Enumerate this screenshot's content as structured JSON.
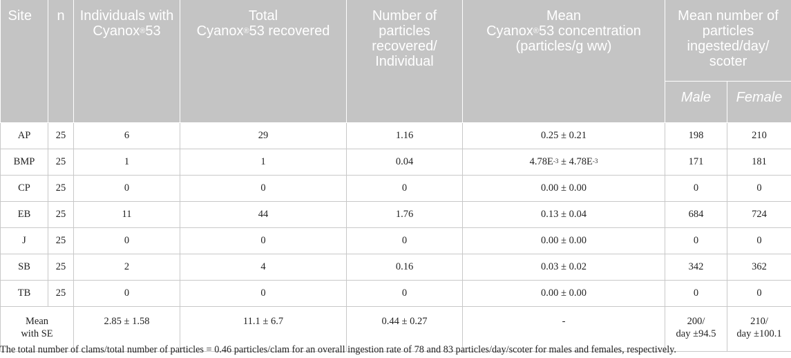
{
  "header": {
    "site": "Site",
    "n": "n",
    "individuals": "Individuals with Cyanox",
    "individuals_sup": "®",
    "individuals_tail": "53",
    "total_line1": "Total",
    "total_line2": "Cyanox",
    "total_sup": "®",
    "total_tail": "53 recovered",
    "particles": "Number of particles recovered/ Individual",
    "mean_line1": "Mean",
    "mean_line2": "Cyanox",
    "mean_sup": "®",
    "mean_tail": "53 concentration",
    "mean_line3": "(particles/g ww)",
    "ingested": "Mean number of particles ingested/day/ scoter",
    "male": "Male",
    "female": "Female"
  },
  "rows": [
    {
      "site": "AP",
      "n": "25",
      "individuals": "6",
      "total": "29",
      "per_individual": "1.16",
      "concentration": "0.25 ± 0.21",
      "male": "198",
      "female": "210"
    },
    {
      "site": "BMP",
      "n": "25",
      "individuals": "1",
      "total": "1",
      "per_individual": "0.04",
      "conc_base1": "4.78E",
      "conc_exp1": "-3",
      "conc_mid": " ± 4.78E",
      "conc_exp2": "-3",
      "male": "171",
      "female": "181"
    },
    {
      "site": "CP",
      "n": "25",
      "individuals": "0",
      "total": "0",
      "per_individual": "0",
      "concentration": "0.00 ± 0.00",
      "male": "0",
      "female": "0"
    },
    {
      "site": "EB",
      "n": "25",
      "individuals": "11",
      "total": "44",
      "per_individual": "1.76",
      "concentration": "0.13 ± 0.04",
      "male": "684",
      "female": "724"
    },
    {
      "site": "J",
      "n": "25",
      "individuals": "0",
      "total": "0",
      "per_individual": "0",
      "concentration": "0.00 ± 0.00",
      "male": "0",
      "female": "0"
    },
    {
      "site": "SB",
      "n": "25",
      "individuals": "2",
      "total": "4",
      "per_individual": "0.16",
      "concentration": "0.03 ± 0.02",
      "male": "342",
      "female": "362"
    },
    {
      "site": "TB",
      "n": "25",
      "individuals": "0",
      "total": "0",
      "per_individual": "0",
      "concentration": "0.00 ± 0.00",
      "male": "0",
      "female": "0"
    }
  ],
  "mean_row": {
    "label_line1": "Mean",
    "label_line2": "with SE",
    "individuals": "2.85 ± 1.58",
    "total": "11.1 ± 6.7",
    "per_individual": "0.44 ± 0.27",
    "concentration": "-",
    "male_line1": "200/",
    "male_line2": "day ±94.5",
    "female_line1": "210/",
    "female_line2": "day ±100.1"
  },
  "footnote": "The total number of clams/total number of particles = 0.46 particles/clam for an overall ingestion rate of 78 and 83 particles/day/scoter for males and females, respectively."
}
